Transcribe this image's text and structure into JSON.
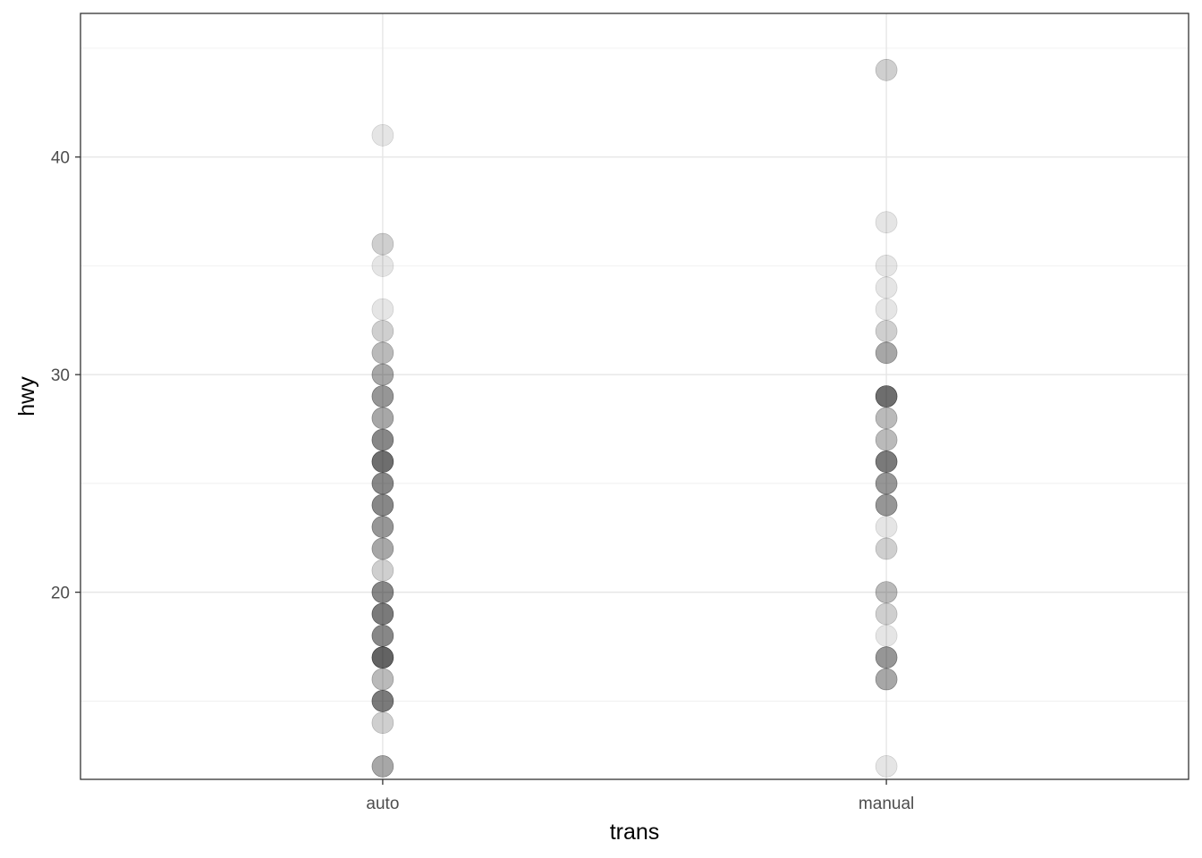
{
  "chart_data": {
    "type": "scatter",
    "title": "",
    "xlabel": "trans",
    "ylabel": "hwy",
    "categories": [
      "auto",
      "manual"
    ],
    "ylim": [
      11.4,
      46.6
    ],
    "yticks": [
      20,
      30,
      40
    ],
    "grid": true,
    "legend": "none",
    "point_color": "#000000",
    "point_alpha_per_observation": 0.1,
    "series": [
      {
        "category": "auto",
        "points": [
          {
            "y": 12,
            "count": 4
          },
          {
            "y": 14,
            "count": 2
          },
          {
            "y": 15,
            "count": 7
          },
          {
            "y": 16,
            "count": 3
          },
          {
            "y": 17,
            "count": 9
          },
          {
            "y": 18,
            "count": 6
          },
          {
            "y": 19,
            "count": 7
          },
          {
            "y": 20,
            "count": 6
          },
          {
            "y": 21,
            "count": 2
          },
          {
            "y": 22,
            "count": 4
          },
          {
            "y": 23,
            "count": 5
          },
          {
            "y": 24,
            "count": 6
          },
          {
            "y": 25,
            "count": 6
          },
          {
            "y": 26,
            "count": 8
          },
          {
            "y": 27,
            "count": 6
          },
          {
            "y": 28,
            "count": 4
          },
          {
            "y": 29,
            "count": 5
          },
          {
            "y": 30,
            "count": 4
          },
          {
            "y": 31,
            "count": 3
          },
          {
            "y": 32,
            "count": 2
          },
          {
            "y": 33,
            "count": 1
          },
          {
            "y": 35,
            "count": 1
          },
          {
            "y": 36,
            "count": 2
          },
          {
            "y": 41,
            "count": 1
          }
        ]
      },
      {
        "category": "manual",
        "points": [
          {
            "y": 12,
            "count": 1
          },
          {
            "y": 16,
            "count": 4
          },
          {
            "y": 17,
            "count": 5
          },
          {
            "y": 18,
            "count": 1
          },
          {
            "y": 19,
            "count": 2
          },
          {
            "y": 20,
            "count": 3
          },
          {
            "y": 22,
            "count": 2
          },
          {
            "y": 23,
            "count": 1
          },
          {
            "y": 24,
            "count": 5
          },
          {
            "y": 25,
            "count": 5
          },
          {
            "y": 26,
            "count": 7
          },
          {
            "y": 27,
            "count": 3
          },
          {
            "y": 28,
            "count": 3
          },
          {
            "y": 29,
            "count": 8
          },
          {
            "y": 31,
            "count": 4
          },
          {
            "y": 32,
            "count": 2
          },
          {
            "y": 33,
            "count": 1
          },
          {
            "y": 34,
            "count": 1
          },
          {
            "y": 35,
            "count": 1
          },
          {
            "y": 37,
            "count": 1
          },
          {
            "y": 44,
            "count": 2
          }
        ]
      }
    ]
  }
}
